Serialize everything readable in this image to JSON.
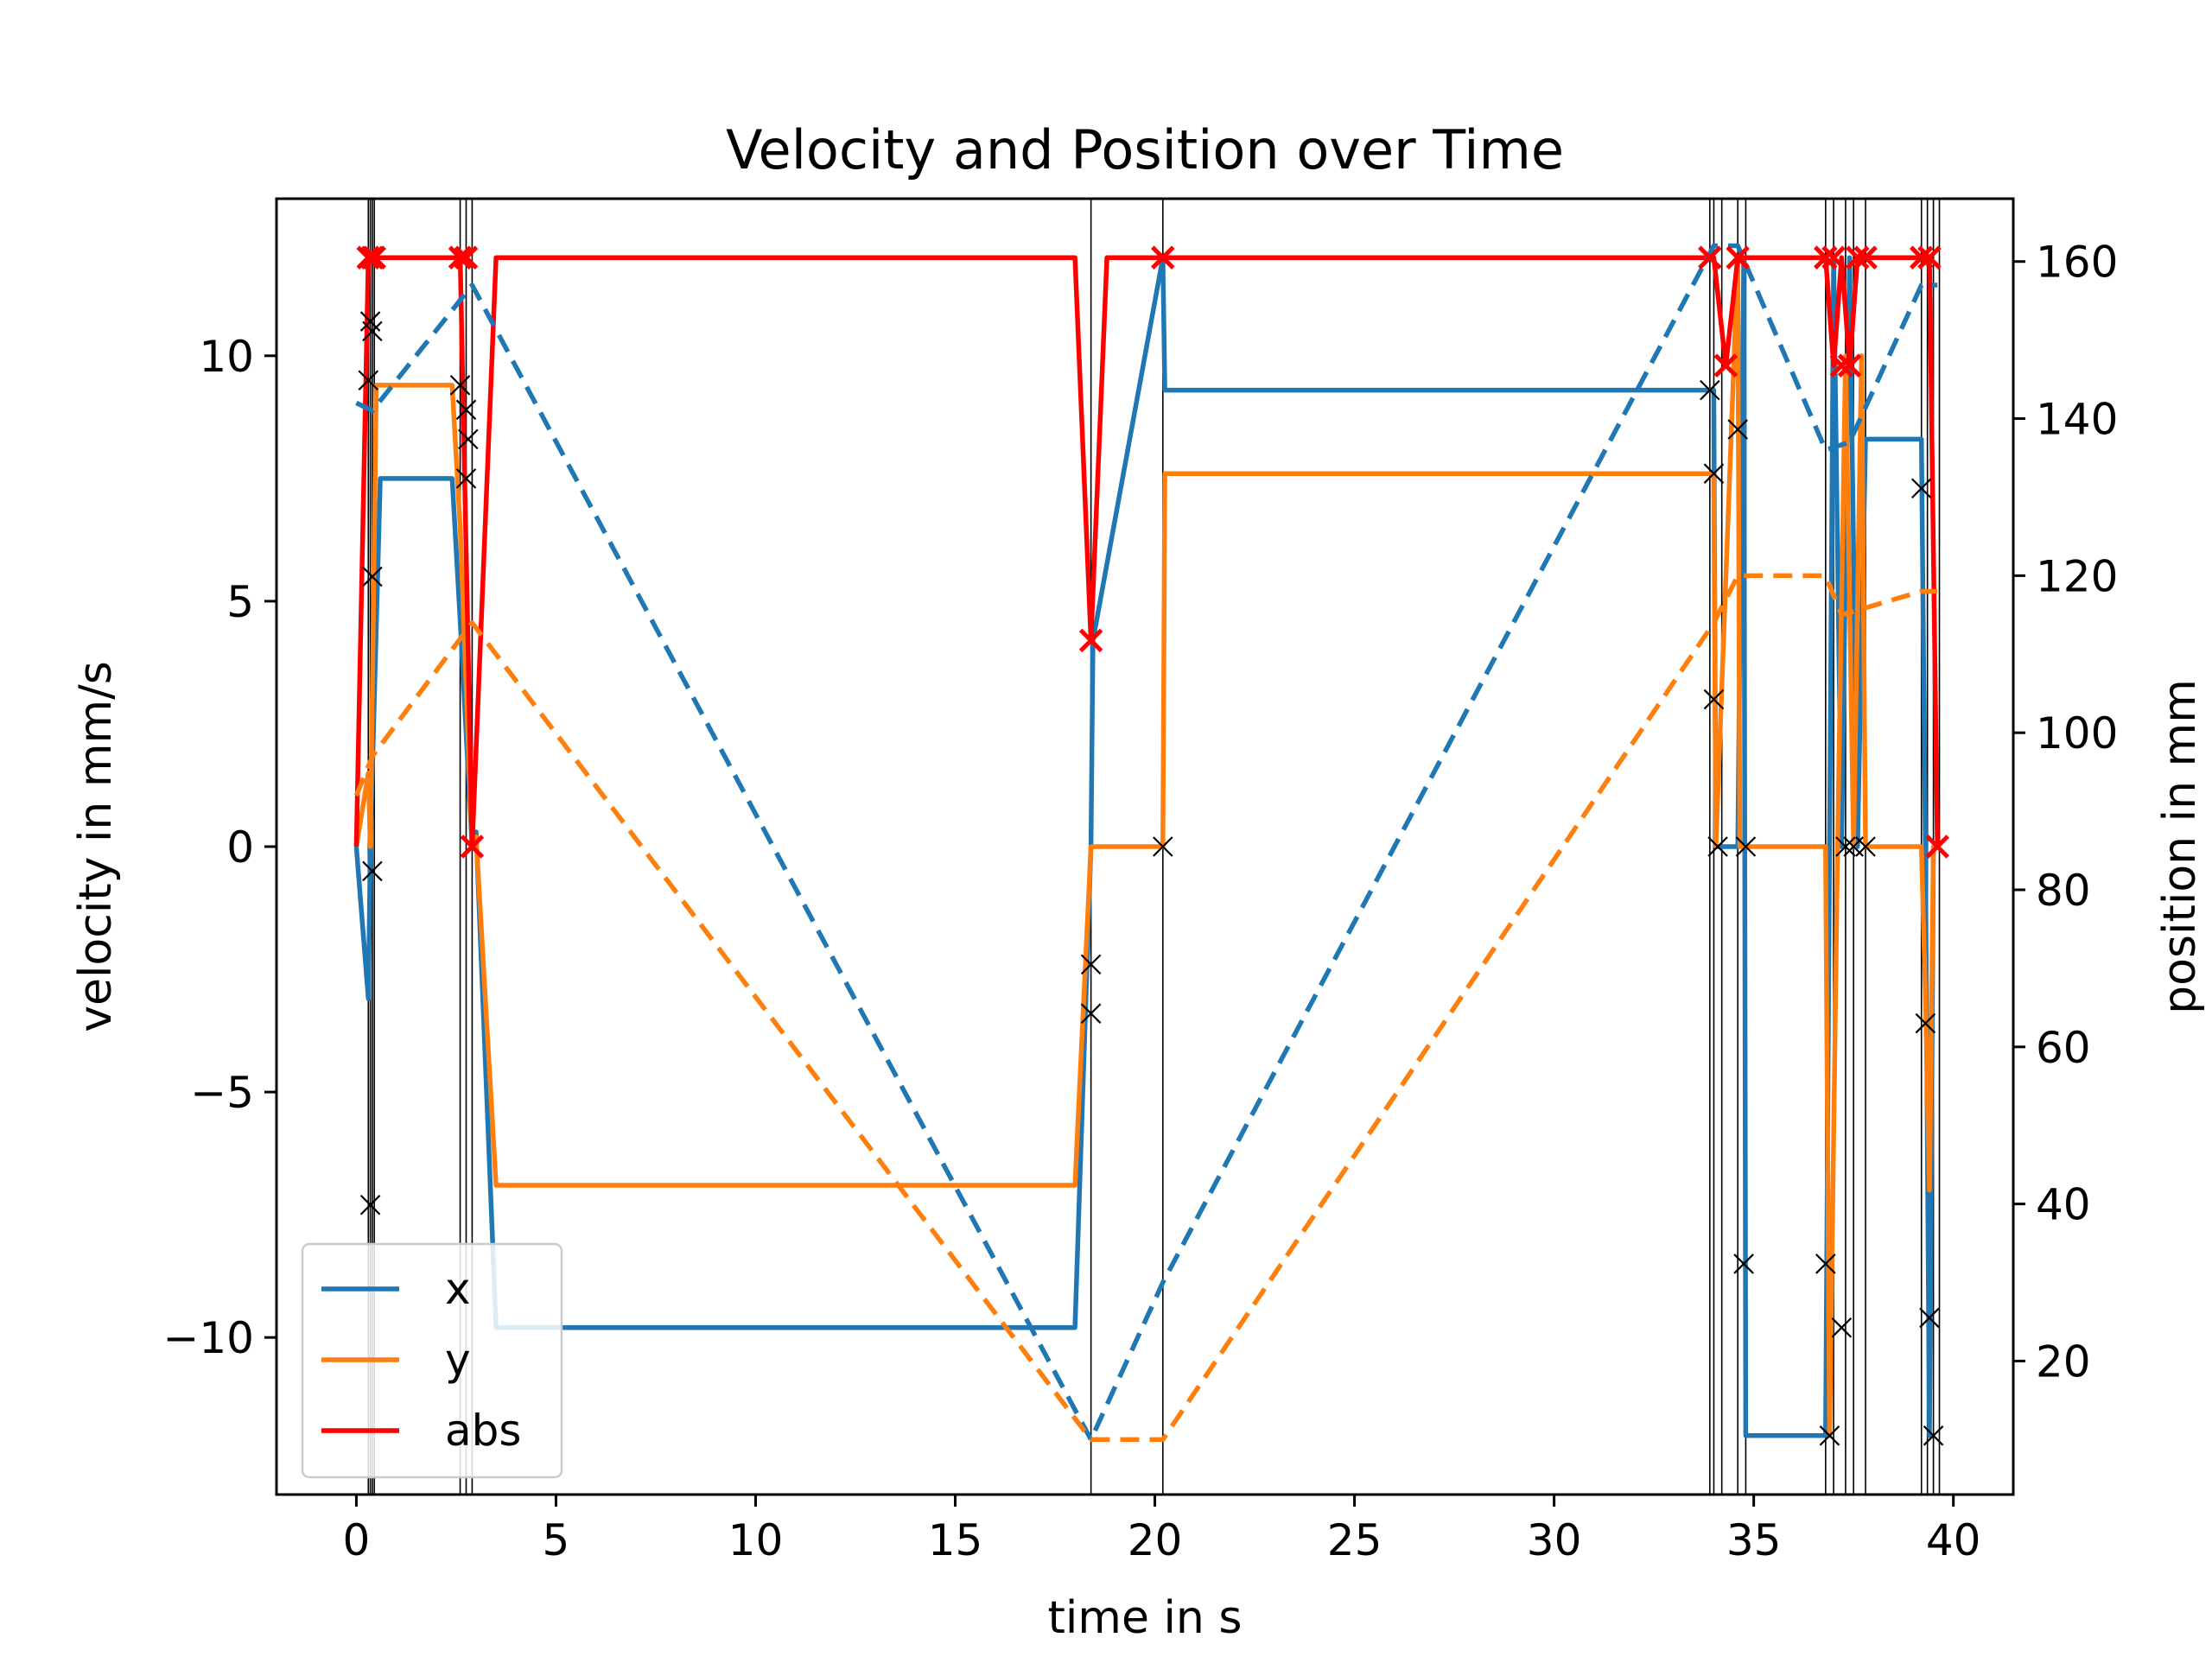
{
  "chart_data": {
    "type": "line",
    "title": "Velocity and Position over Time",
    "xlabel": "time in s",
    "ylabel": "velocity in mm/s",
    "y2label": "position in mm",
    "xlim": [
      -2,
      41.5
    ],
    "ylim": [
      -13.2,
      13.2
    ],
    "y2lim": [
      3,
      168
    ],
    "xticks": [
      0,
      5,
      10,
      15,
      20,
      25,
      30,
      35,
      40
    ],
    "yticks": [
      -10,
      -5,
      0,
      5,
      10
    ],
    "y2ticks": [
      20,
      40,
      60,
      80,
      100,
      120,
      140,
      160
    ],
    "xtick_labels": [
      "0",
      "5",
      "10",
      "15",
      "20",
      "25",
      "30",
      "35",
      "40"
    ],
    "ytick_labels": [
      "−10",
      "−5",
      "0",
      "5",
      "10"
    ],
    "y2tick_labels": [
      "20",
      "40",
      "60",
      "80",
      "100",
      "120",
      "140",
      "160"
    ],
    "legend_position": "lower-left",
    "grid": false,
    "colors": {
      "x": "#1f77b4",
      "y": "#ff7f0e",
      "abs": "#ff0000",
      "marker": "#000000",
      "vline": "#000000"
    },
    "vlines": [
      0.3,
      0.35,
      0.4,
      0.45,
      2.6,
      2.75,
      2.9,
      18.4,
      20.2,
      33.9,
      34.0,
      34.2,
      34.6,
      34.8,
      36.8,
      37.0,
      37.3,
      37.5,
      37.8,
      39.2,
      39.35,
      39.5,
      39.65
    ],
    "series": [
      {
        "name": "x",
        "axis": "left",
        "style": "solid",
        "x": [
          0,
          0.3,
          0.35,
          0.6,
          2.4,
          2.6,
          2.9,
          3.0,
          3.5,
          18.0,
          18.4,
          18.45,
          20.2,
          20.25,
          34.0,
          34.05,
          34.6,
          34.75,
          34.8,
          36.8,
          36.9,
          37.0,
          37.2,
          37.4,
          37.6,
          37.8,
          39.2,
          39.3,
          39.4,
          39.5,
          39.55
        ],
        "y": [
          0,
          -3.1,
          0,
          7.5,
          7.5,
          4.6,
          0,
          0.3,
          -9.8,
          -9.8,
          0,
          4.2,
          12,
          9.3,
          9.3,
          0,
          0,
          12,
          -12,
          -12,
          0,
          12,
          0,
          12,
          0,
          8.3,
          8.3,
          0,
          -12,
          0,
          0
        ]
      },
      {
        "name": "y",
        "axis": "left",
        "style": "solid",
        "x": [
          0,
          0.3,
          0.35,
          0.5,
          2.4,
          2.6,
          2.9,
          3.0,
          3.5,
          18.0,
          18.4,
          18.45,
          20.2,
          20.25,
          34.0,
          34.05,
          34.6,
          34.65,
          36.8,
          36.9,
          37.1,
          37.3,
          37.5,
          37.7,
          37.8,
          39.2,
          39.3,
          39.4,
          39.5,
          39.55
        ],
        "y": [
          0,
          1.5,
          0,
          9.4,
          9.4,
          6.5,
          0,
          0.2,
          -6.9,
          -6.9,
          0,
          0,
          0,
          7.6,
          7.6,
          0,
          12,
          0,
          0,
          -12,
          0,
          10,
          0,
          10,
          0,
          0,
          -3.0,
          -7.0,
          0,
          0
        ]
      },
      {
        "name": "abs",
        "axis": "left",
        "style": "solid",
        "x": [
          0,
          0.3,
          0.45,
          2.6,
          2.9,
          3.5,
          18.0,
          18.4,
          18.8,
          20.2,
          34.0,
          34.3,
          34.6,
          36.8,
          37.0,
          37.2,
          37.4,
          37.6,
          37.8,
          39.2,
          39.4,
          39.6
        ],
        "y": [
          0,
          12,
          12,
          12,
          0,
          12,
          12,
          4.2,
          12,
          12,
          12,
          9.8,
          12,
          12,
          9.8,
          12,
          9.8,
          12,
          12,
          12,
          12,
          0
        ]
      },
      {
        "name": "",
        "axis": "right",
        "style": "dashed",
        "color_key": "x",
        "x": [
          0,
          0.4,
          2.9,
          18.4,
          20.2,
          34.0,
          34.6,
          36.8,
          37.4,
          39.2,
          39.6
        ],
        "y": [
          142,
          141,
          157,
          10,
          30,
          162,
          162,
          136,
          137,
          157,
          157
        ]
      },
      {
        "name": "",
        "axis": "right",
        "style": "dashed",
        "color_key": "y",
        "x": [
          0,
          0.4,
          2.9,
          18.4,
          20.2,
          34.0,
          34.6,
          36.8,
          37.2,
          39.2,
          39.6
        ],
        "y": [
          92,
          97,
          114,
          10,
          10,
          114,
          120,
          120,
          115,
          118,
          118
        ]
      }
    ],
    "abs_markers": {
      "x": [
        0.3,
        0.4,
        0.45,
        2.6,
        2.75,
        2.9,
        18.4,
        20.2,
        33.9,
        34.3,
        34.6,
        36.8,
        37.0,
        37.2,
        37.4,
        37.6,
        37.8,
        39.2,
        39.4,
        39.6
      ],
      "y": [
        12,
        12,
        12,
        12,
        12,
        0,
        4.2,
        12,
        12,
        9.8,
        12,
        12,
        12,
        9.8,
        9.8,
        12,
        12,
        12,
        12,
        0
      ]
    },
    "component_markers": {
      "x": [
        0.3,
        0.35,
        0.4,
        0.35,
        0.4,
        0.4,
        2.6,
        2.75,
        2.75,
        2.8,
        2.9,
        18.4,
        18.4,
        20.2,
        20.2,
        33.9,
        34.0,
        34.0,
        34.1,
        34.6,
        34.75,
        34.8,
        36.8,
        36.9,
        37.2,
        37.3,
        37.5,
        37.8,
        39.2,
        39.3,
        39.4,
        39.5
      ],
      "y": [
        9.5,
        10.7,
        5.5,
        -7.3,
        -0.5,
        10.5,
        9.4,
        7.5,
        8.9,
        8.3,
        0,
        -2.4,
        -3.4,
        0,
        12,
        9.3,
        7.6,
        3.0,
        0,
        8.5,
        -8.5,
        0,
        -8.5,
        -12,
        -9.8,
        0,
        0,
        0,
        7.3,
        -3.6,
        -9.6,
        -12
      ]
    }
  }
}
